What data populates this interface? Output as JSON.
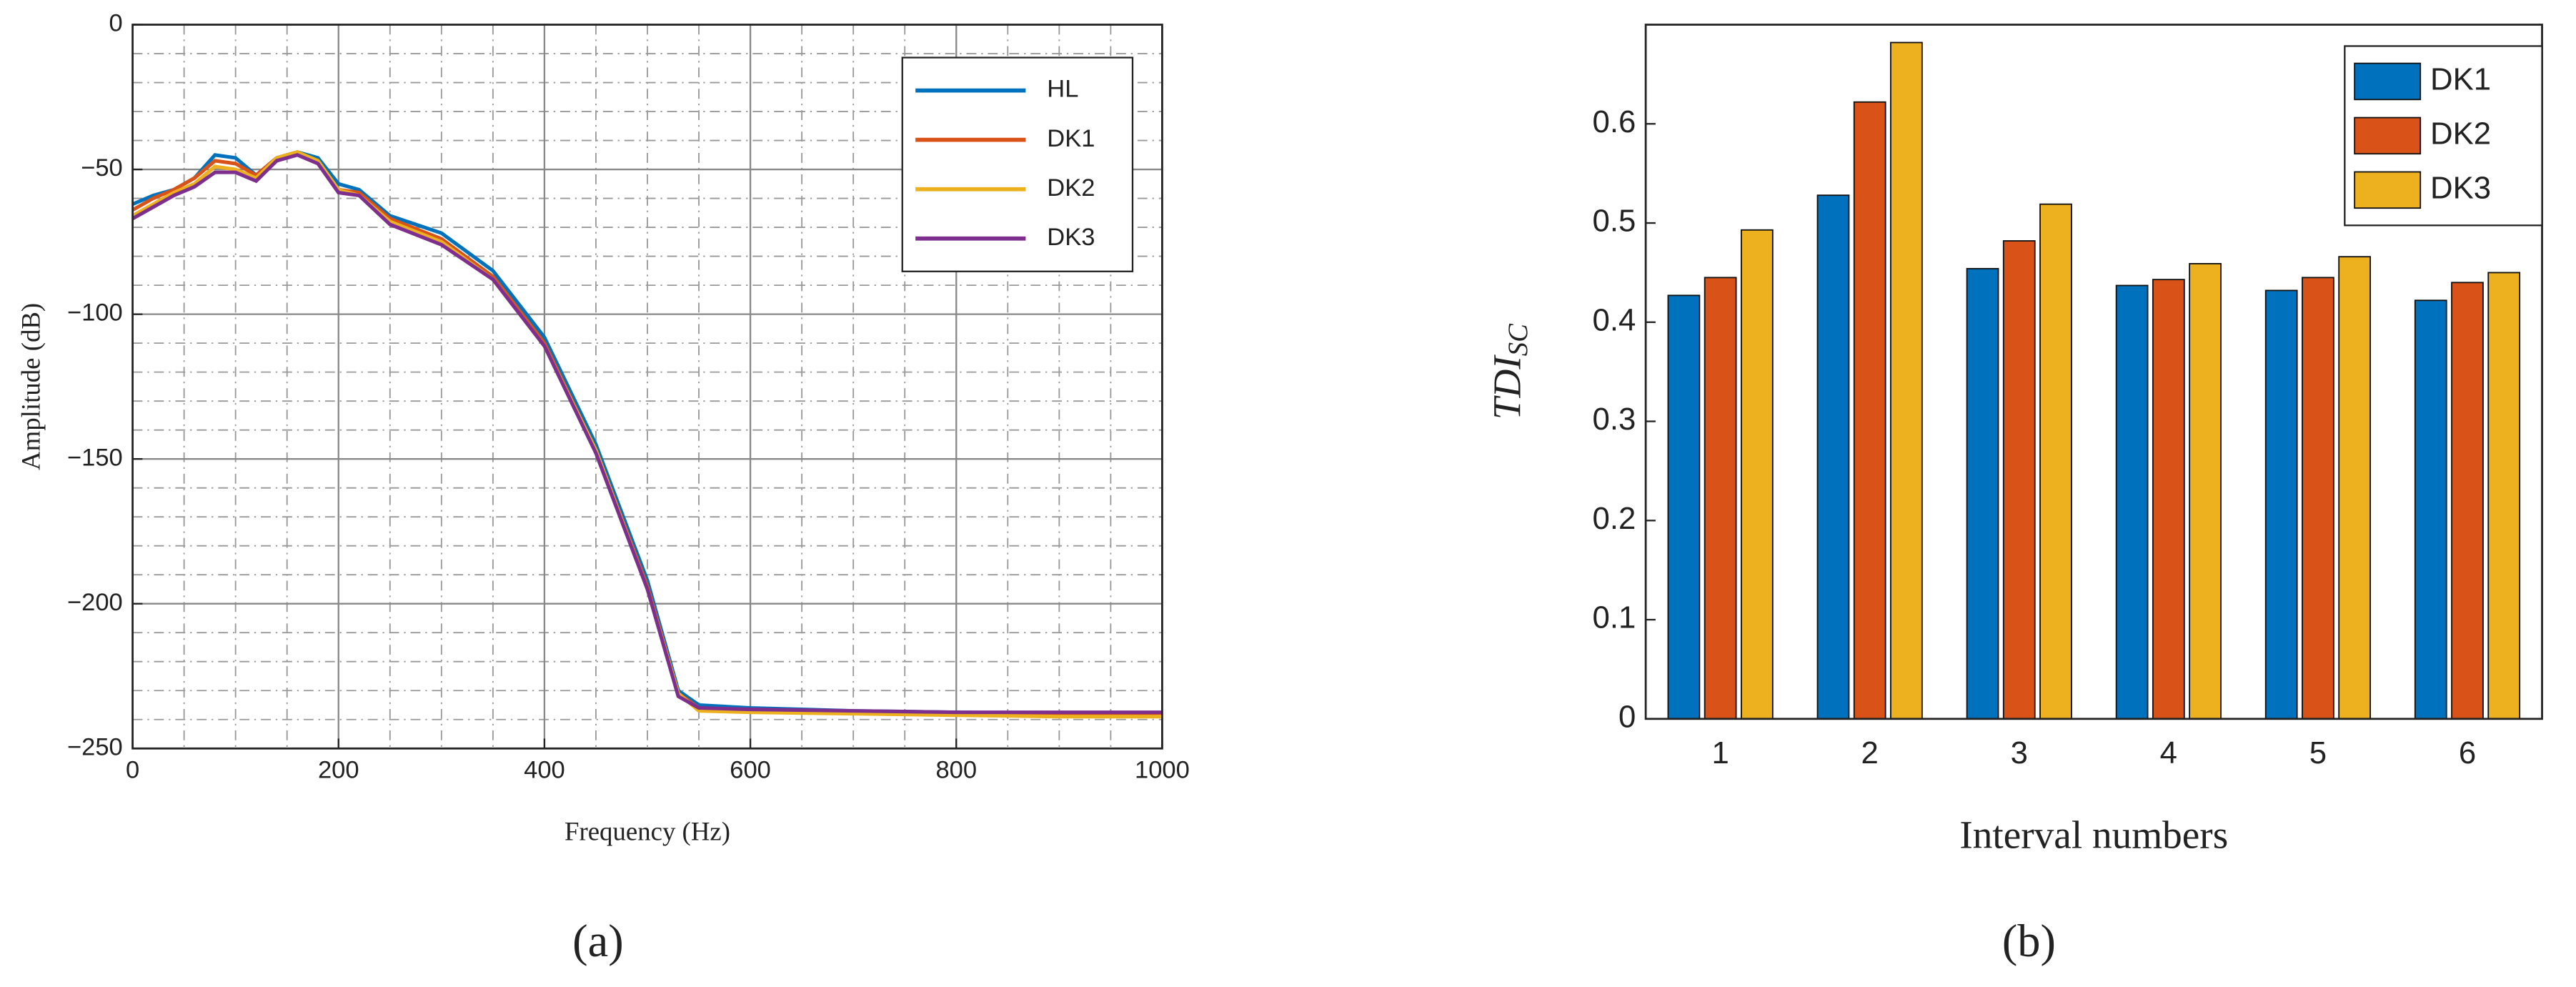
{
  "chart_data": [
    {
      "type": "line",
      "xlabel": "Frequency (Hz)",
      "ylabel": "Amplitude (dB)",
      "caption": "(a)",
      "x": [
        0,
        20,
        40,
        60,
        80,
        100,
        120,
        140,
        160,
        180,
        200,
        220,
        250,
        300,
        350,
        400,
        450,
        500,
        530,
        550,
        600,
        700,
        800,
        900,
        1000
      ],
      "series": [
        {
          "name": "HL",
          "color": "#0072bd",
          "values": [
            -62,
            -59,
            -57,
            -53,
            -45,
            -46,
            -52,
            -46,
            -44,
            -46,
            -55,
            -57,
            -66,
            -72,
            -85,
            -108,
            -145,
            -192,
            -230,
            -235,
            -236,
            -237,
            -237.5,
            -238,
            -238
          ]
        },
        {
          "name": "DK1",
          "color": "#d95319",
          "values": [
            -64,
            -60,
            -57,
            -53,
            -47,
            -48,
            -52,
            -46,
            -44,
            -47,
            -57,
            -58,
            -67,
            -74,
            -87,
            -110,
            -147,
            -194,
            -231,
            -236,
            -237,
            -237.5,
            -238,
            -238.5,
            -238.5
          ]
        },
        {
          "name": "DK2",
          "color": "#edb120",
          "values": [
            -66,
            -62,
            -58,
            -55,
            -49,
            -50,
            -53,
            -46,
            -44,
            -47,
            -57,
            -59,
            -68,
            -75,
            -88,
            -111,
            -147,
            -195,
            -231,
            -237,
            -237.5,
            -238,
            -238.5,
            -239,
            -239
          ]
        },
        {
          "name": "DK3",
          "color": "#7e2f8e",
          "values": [
            -67,
            -63,
            -59,
            -56,
            -51,
            -51,
            -54,
            -47,
            -45,
            -48,
            -58,
            -59,
            -69,
            -76,
            -88,
            -111,
            -148,
            -195,
            -232,
            -236,
            -236.5,
            -237,
            -237.5,
            -237.5,
            -237.5
          ]
        }
      ],
      "xlim": [
        0,
        1000
      ],
      "xticks": [
        0,
        200,
        400,
        600,
        800,
        1000
      ],
      "ylim": [
        -250,
        0
      ],
      "yticks": [
        {
          "value": -250,
          "label": "−250"
        },
        {
          "value": -200,
          "label": "−200"
        },
        {
          "value": -150,
          "label": "−150"
        },
        {
          "value": -100,
          "label": "−100"
        },
        {
          "value": -50,
          "label": "−50"
        },
        0
      ],
      "grid": true,
      "legend": "northeast"
    },
    {
      "type": "bar",
      "xlabel": "Interval numbers",
      "ylabel": "TDI",
      "ylabel_sub": "SC",
      "caption": "(b)",
      "categories": [
        "1",
        "2",
        "3",
        "4",
        "5",
        "6"
      ],
      "series": [
        {
          "name": "DK1",
          "color": "#0072bd",
          "values": [
            0.427,
            0.528,
            0.454,
            0.437,
            0.432,
            0.422
          ]
        },
        {
          "name": "DK2",
          "color": "#d95319",
          "values": [
            0.445,
            0.622,
            0.482,
            0.443,
            0.445,
            0.44
          ]
        },
        {
          "name": "DK3",
          "color": "#edb120",
          "values": [
            0.493,
            0.682,
            0.519,
            0.459,
            0.466,
            0.45
          ]
        }
      ],
      "ylim": [
        0,
        0.7
      ],
      "yticks": [
        0,
        0.1,
        0.2,
        0.3,
        0.4,
        0.5,
        0.6
      ],
      "grid": false,
      "legend": "northeast"
    }
  ]
}
